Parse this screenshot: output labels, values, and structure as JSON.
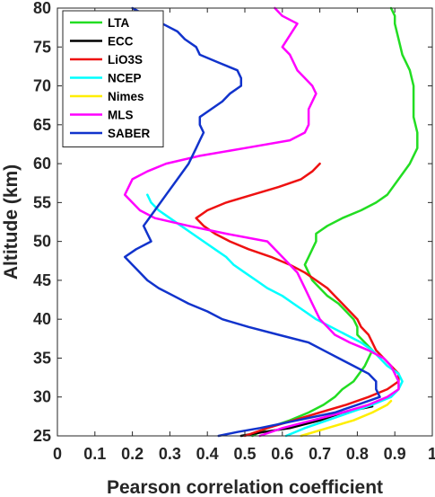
{
  "chart_data": {
    "type": "line",
    "xlabel": "Pearson correlation coefficient",
    "ylabel": "Altitude (km)",
    "xlim": [
      0,
      1
    ],
    "ylim": [
      25,
      80
    ],
    "xticks": [
      0,
      0.1,
      0.2,
      0.3,
      0.4,
      0.5,
      0.6,
      0.7,
      0.8,
      0.9,
      1
    ],
    "xtick_labels": [
      "0",
      "0.1",
      "0.2",
      "0.3",
      "0.4",
      "0.5",
      "0.6",
      "0.7",
      "0.8",
      "0.9",
      "1"
    ],
    "yticks": [
      25,
      30,
      35,
      40,
      45,
      50,
      55,
      60,
      65,
      70,
      75,
      80
    ],
    "ytick_labels": [
      "25",
      "30",
      "35",
      "40",
      "45",
      "50",
      "55",
      "60",
      "65",
      "70",
      "75",
      "80"
    ],
    "grid": false,
    "legend_position": "top-left",
    "series": [
      {
        "name": "LTA",
        "color": "#22dd22",
        "points": [
          [
            0.52,
            25
          ],
          [
            0.56,
            26
          ],
          [
            0.62,
            27
          ],
          [
            0.67,
            28
          ],
          [
            0.71,
            29
          ],
          [
            0.74,
            30
          ],
          [
            0.76,
            31
          ],
          [
            0.79,
            32
          ],
          [
            0.82,
            34
          ],
          [
            0.84,
            36
          ],
          [
            0.82,
            37
          ],
          [
            0.8,
            38
          ],
          [
            0.8,
            39
          ],
          [
            0.79,
            40
          ],
          [
            0.77,
            41
          ],
          [
            0.75,
            42
          ],
          [
            0.72,
            43
          ],
          [
            0.7,
            44
          ],
          [
            0.68,
            45
          ],
          [
            0.67,
            46
          ],
          [
            0.66,
            47
          ],
          [
            0.67,
            48
          ],
          [
            0.68,
            49
          ],
          [
            0.69,
            50
          ],
          [
            0.69,
            51
          ],
          [
            0.72,
            52
          ],
          [
            0.76,
            53
          ],
          [
            0.81,
            54
          ],
          [
            0.85,
            55
          ],
          [
            0.88,
            56
          ],
          [
            0.91,
            58
          ],
          [
            0.94,
            60
          ],
          [
            0.96,
            62
          ],
          [
            0.96,
            64
          ],
          [
            0.95,
            66
          ],
          [
            0.95,
            68
          ],
          [
            0.95,
            70
          ],
          [
            0.94,
            72
          ],
          [
            0.92,
            74
          ],
          [
            0.91,
            76
          ],
          [
            0.9,
            78
          ],
          [
            0.9,
            79
          ],
          [
            0.89,
            80
          ]
        ]
      },
      {
        "name": "ECC",
        "color": "#000000",
        "points": [
          [
            0.49,
            25
          ],
          [
            0.55,
            25.5
          ],
          [
            0.62,
            26
          ],
          [
            0.7,
            27
          ],
          [
            0.76,
            28
          ],
          [
            0.84,
            28.8
          ]
        ]
      },
      {
        "name": "LiO3S",
        "color": "#ee1111",
        "points": [
          [
            0.5,
            25
          ],
          [
            0.56,
            26
          ],
          [
            0.63,
            27
          ],
          [
            0.7,
            28
          ],
          [
            0.77,
            29
          ],
          [
            0.83,
            30
          ],
          [
            0.88,
            31
          ],
          [
            0.91,
            32
          ],
          [
            0.91,
            33
          ],
          [
            0.89,
            34
          ],
          [
            0.87,
            35
          ],
          [
            0.85,
            36
          ],
          [
            0.84,
            37
          ],
          [
            0.83,
            38
          ],
          [
            0.81,
            39
          ],
          [
            0.8,
            40
          ],
          [
            0.78,
            41
          ],
          [
            0.76,
            42
          ],
          [
            0.74,
            43
          ],
          [
            0.72,
            44
          ],
          [
            0.69,
            45
          ],
          [
            0.66,
            46
          ],
          [
            0.62,
            47
          ],
          [
            0.57,
            48
          ],
          [
            0.51,
            49
          ],
          [
            0.46,
            50
          ],
          [
            0.42,
            51
          ],
          [
            0.39,
            52
          ],
          [
            0.37,
            53
          ],
          [
            0.4,
            54
          ],
          [
            0.45,
            55
          ],
          [
            0.52,
            56
          ],
          [
            0.59,
            57
          ],
          [
            0.65,
            58
          ],
          [
            0.68,
            59
          ],
          [
            0.7,
            60
          ]
        ]
      },
      {
        "name": "NCEP",
        "color": "#00ffff",
        "points": [
          [
            0.61,
            25
          ],
          [
            0.66,
            26
          ],
          [
            0.72,
            27
          ],
          [
            0.78,
            28
          ],
          [
            0.84,
            29
          ],
          [
            0.89,
            30
          ],
          [
            0.91,
            31
          ],
          [
            0.92,
            32
          ],
          [
            0.91,
            33
          ],
          [
            0.88,
            34
          ],
          [
            0.86,
            35
          ],
          [
            0.84,
            36
          ],
          [
            0.81,
            37
          ],
          [
            0.77,
            38
          ],
          [
            0.73,
            39
          ],
          [
            0.69,
            40
          ],
          [
            0.66,
            41
          ],
          [
            0.63,
            42
          ],
          [
            0.6,
            43
          ],
          [
            0.56,
            44
          ],
          [
            0.53,
            45
          ],
          [
            0.5,
            46
          ],
          [
            0.47,
            47
          ],
          [
            0.45,
            48
          ],
          [
            0.42,
            49
          ],
          [
            0.39,
            50
          ],
          [
            0.36,
            51
          ],
          [
            0.33,
            52
          ],
          [
            0.3,
            53
          ],
          [
            0.27,
            54
          ],
          [
            0.25,
            55
          ],
          [
            0.24,
            56
          ]
        ]
      },
      {
        "name": "Nimes",
        "color": "#ffee00",
        "points": [
          [
            0.65,
            25
          ],
          [
            0.72,
            26
          ],
          [
            0.79,
            27
          ],
          [
            0.84,
            28
          ],
          [
            0.88,
            29
          ],
          [
            0.89,
            29.5
          ]
        ]
      },
      {
        "name": "MLS",
        "color": "#ff00ff",
        "points": [
          [
            0.54,
            25
          ],
          [
            0.6,
            26
          ],
          [
            0.68,
            27
          ],
          [
            0.76,
            28
          ],
          [
            0.83,
            29
          ],
          [
            0.88,
            30
          ],
          [
            0.91,
            31
          ],
          [
            0.91,
            32
          ],
          [
            0.9,
            33
          ],
          [
            0.89,
            34
          ],
          [
            0.87,
            35
          ],
          [
            0.83,
            36
          ],
          [
            0.78,
            37
          ],
          [
            0.74,
            38
          ],
          [
            0.72,
            39
          ],
          [
            0.7,
            40
          ],
          [
            0.68,
            42
          ],
          [
            0.66,
            44
          ],
          [
            0.64,
            46
          ],
          [
            0.6,
            48
          ],
          [
            0.56,
            50
          ],
          [
            0.45,
            51
          ],
          [
            0.35,
            52
          ],
          [
            0.26,
            53
          ],
          [
            0.22,
            54
          ],
          [
            0.2,
            55
          ],
          [
            0.18,
            56
          ],
          [
            0.2,
            58
          ],
          [
            0.24,
            59
          ],
          [
            0.29,
            60
          ],
          [
            0.38,
            61
          ],
          [
            0.5,
            62
          ],
          [
            0.62,
            63
          ],
          [
            0.66,
            64
          ],
          [
            0.67,
            65
          ],
          [
            0.67,
            66
          ],
          [
            0.67,
            67
          ],
          [
            0.68,
            68
          ],
          [
            0.69,
            69
          ],
          [
            0.68,
            70
          ],
          [
            0.66,
            71
          ],
          [
            0.64,
            72
          ],
          [
            0.62,
            74
          ],
          [
            0.6,
            75
          ],
          [
            0.64,
            78
          ],
          [
            0.6,
            79
          ],
          [
            0.58,
            80
          ]
        ]
      },
      {
        "name": "SABER",
        "color": "#1133cc",
        "points": [
          [
            0.43,
            25
          ],
          [
            0.48,
            25.5
          ],
          [
            0.54,
            26
          ],
          [
            0.64,
            27
          ],
          [
            0.74,
            28
          ],
          [
            0.8,
            29
          ],
          [
            0.86,
            30
          ],
          [
            0.85,
            31
          ],
          [
            0.85,
            32
          ],
          [
            0.83,
            33
          ],
          [
            0.79,
            34
          ],
          [
            0.75,
            35
          ],
          [
            0.71,
            36
          ],
          [
            0.67,
            37
          ],
          [
            0.59,
            38
          ],
          [
            0.51,
            39
          ],
          [
            0.44,
            40
          ],
          [
            0.4,
            41
          ],
          [
            0.35,
            42
          ],
          [
            0.31,
            43
          ],
          [
            0.27,
            44
          ],
          [
            0.24,
            45
          ],
          [
            0.22,
            46
          ],
          [
            0.2,
            47
          ],
          [
            0.18,
            48
          ],
          [
            0.21,
            49
          ],
          [
            0.25,
            50
          ],
          [
            0.24,
            51
          ],
          [
            0.23,
            52
          ],
          [
            0.26,
            54
          ],
          [
            0.29,
            56
          ],
          [
            0.32,
            58
          ],
          [
            0.35,
            60
          ],
          [
            0.36,
            61
          ],
          [
            0.37,
            62
          ],
          [
            0.38,
            63
          ],
          [
            0.39,
            64
          ],
          [
            0.38,
            65
          ],
          [
            0.38,
            66
          ],
          [
            0.41,
            67
          ],
          [
            0.44,
            68
          ],
          [
            0.46,
            69
          ],
          [
            0.49,
            70
          ],
          [
            0.49,
            71
          ],
          [
            0.48,
            72
          ],
          [
            0.43,
            73
          ],
          [
            0.38,
            74
          ],
          [
            0.37,
            75
          ],
          [
            0.34,
            76
          ],
          [
            0.32,
            77
          ],
          [
            0.28,
            78
          ],
          [
            0.24,
            79
          ],
          [
            0.2,
            80
          ]
        ]
      }
    ]
  }
}
